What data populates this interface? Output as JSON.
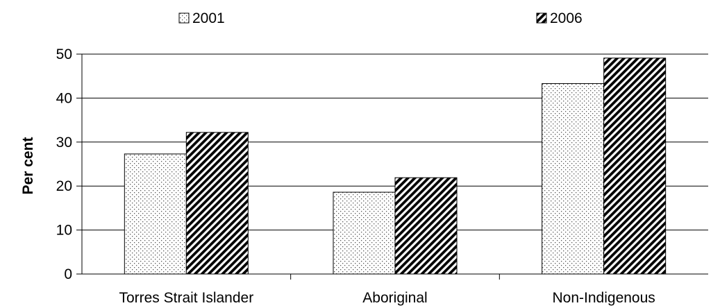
{
  "chart_data": {
    "type": "bar",
    "categories": [
      "Torres Strait Islander",
      "Aboriginal",
      "Non-Indigenous"
    ],
    "series": [
      {
        "name": "2001",
        "values": [
          27.3,
          18.6,
          43.3
        ],
        "pattern": "dots"
      },
      {
        "name": "2006",
        "values": [
          32.2,
          21.9,
          49.1
        ],
        "pattern": "hatch"
      }
    ],
    "ylabel": "Per cent",
    "xlabel": "",
    "ylim": [
      0,
      50
    ],
    "yticks": [
      0,
      10,
      20,
      30,
      40,
      50
    ],
    "grid": true,
    "legend": "top"
  }
}
